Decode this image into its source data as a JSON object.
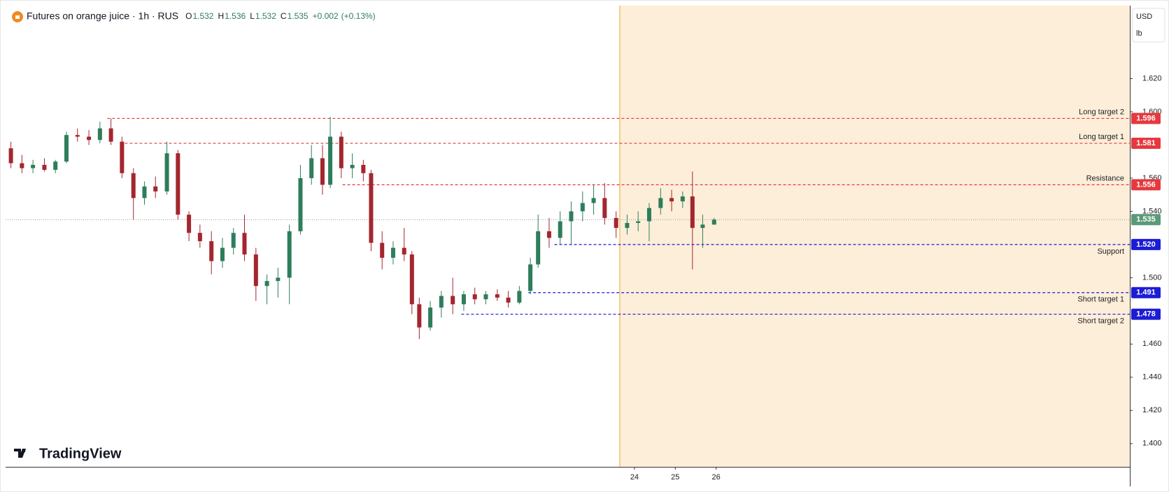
{
  "header": {
    "symbol": "Futures on orange juice · 1h · RUS",
    "ohlc": [
      {
        "label": "O",
        "value": 1.532
      },
      {
        "label": "H",
        "value": 1.536
      },
      {
        "label": "L",
        "value": 1.532
      },
      {
        "label": "C",
        "value": 1.535
      }
    ],
    "change": "+0.002",
    "change_pct": "(+0.13%)"
  },
  "currency": "USD",
  "unit": "lb",
  "watermark": "TradingView",
  "chart_data": {
    "type": "candlestick",
    "x": [
      8.73,
      9.0,
      9.27,
      9.55,
      9.82,
      10.09,
      10.36,
      10.64,
      10.91,
      11.18,
      11.45,
      11.73,
      12.0,
      12.27,
      12.55,
      12.82,
      13.09,
      13.36,
      13.64,
      13.91,
      14.18,
      14.45,
      14.73,
      15.0,
      15.27,
      15.55,
      15.82,
      16.09,
      16.36,
      16.55,
      16.82,
      17.09,
      17.36,
      17.55,
      17.82,
      18.09,
      18.36,
      18.55,
      18.73,
      19.0,
      19.27,
      19.55,
      19.82,
      20.09,
      20.36,
      20.64,
      20.91,
      21.18,
      21.45,
      21.64,
      21.91,
      22.18,
      22.45,
      22.73,
      23.0,
      23.27,
      23.55,
      23.82,
      24.09,
      24.36,
      24.64,
      24.91,
      25.18,
      25.42,
      25.67,
      25.95
    ],
    "open": [
      1.578,
      1.569,
      1.566,
      1.568,
      1.565,
      1.57,
      1.586,
      1.585,
      1.583,
      1.59,
      1.582,
      1.563,
      1.548,
      1.555,
      1.552,
      1.575,
      1.538,
      1.527,
      1.522,
      1.51,
      1.518,
      1.527,
      1.514,
      1.495,
      1.498,
      1.5,
      1.528,
      1.56,
      1.572,
      1.556,
      1.585,
      1.566,
      1.568,
      1.563,
      1.521,
      1.512,
      1.518,
      1.514,
      1.484,
      1.47,
      1.482,
      1.489,
      1.484,
      1.49,
      1.487,
      1.49,
      1.488,
      1.485,
      1.492,
      1.508,
      1.528,
      1.524,
      1.534,
      1.54,
      1.545,
      1.548,
      1.536,
      1.53,
      1.533,
      1.534,
      1.542,
      1.548,
      1.546,
      1.549,
      1.53,
      1.532
    ],
    "high": [
      1.582,
      1.574,
      1.571,
      1.572,
      1.571,
      1.588,
      1.59,
      1.589,
      1.594,
      1.596,
      1.585,
      1.566,
      1.558,
      1.561,
      1.582,
      1.577,
      1.54,
      1.532,
      1.528,
      1.524,
      1.53,
      1.538,
      1.518,
      1.502,
      1.506,
      1.532,
      1.568,
      1.58,
      1.58,
      1.597,
      1.588,
      1.575,
      1.571,
      1.565,
      1.528,
      1.522,
      1.53,
      1.516,
      1.488,
      1.486,
      1.492,
      1.5,
      1.492,
      1.494,
      1.492,
      1.493,
      1.492,
      1.495,
      1.512,
      1.538,
      1.536,
      1.54,
      1.546,
      1.552,
      1.556,
      1.557,
      1.54,
      1.538,
      1.54,
      1.545,
      1.554,
      1.553,
      1.552,
      1.564,
      1.538,
      1.536
    ],
    "low": [
      1.566,
      1.563,
      1.563,
      1.564,
      1.563,
      1.569,
      1.582,
      1.58,
      1.581,
      1.58,
      1.56,
      1.535,
      1.544,
      1.548,
      1.55,
      1.535,
      1.522,
      1.518,
      1.502,
      1.506,
      1.514,
      1.51,
      1.486,
      1.484,
      1.488,
      1.484,
      1.526,
      1.556,
      1.55,
      1.554,
      1.56,
      1.56,
      1.558,
      1.516,
      1.505,
      1.508,
      1.51,
      1.478,
      1.463,
      1.468,
      1.476,
      1.478,
      1.48,
      1.484,
      1.484,
      1.486,
      1.482,
      1.484,
      1.49,
      1.506,
      1.518,
      1.52,
      1.52,
      1.534,
      1.538,
      1.532,
      1.524,
      1.526,
      1.528,
      1.522,
      1.538,
      1.54,
      1.542,
      1.505,
      1.518,
      1.532
    ],
    "close": [
      1.569,
      1.566,
      1.568,
      1.565,
      1.57,
      1.586,
      1.585,
      1.583,
      1.59,
      1.582,
      1.563,
      1.548,
      1.555,
      1.552,
      1.575,
      1.538,
      1.527,
      1.522,
      1.51,
      1.518,
      1.527,
      1.514,
      1.495,
      1.498,
      1.5,
      1.528,
      1.56,
      1.572,
      1.556,
      1.585,
      1.566,
      1.568,
      1.563,
      1.521,
      1.512,
      1.518,
      1.514,
      1.484,
      1.47,
      1.482,
      1.489,
      1.484,
      1.49,
      1.487,
      1.49,
      1.488,
      1.485,
      1.492,
      1.508,
      1.528,
      1.524,
      1.534,
      1.54,
      1.545,
      1.548,
      1.536,
      1.53,
      1.533,
      1.534,
      1.542,
      1.548,
      1.546,
      1.549,
      1.53,
      1.532,
      1.535
    ],
    "up_color": "#2e7d5b",
    "down_color": "#a3262e",
    "xlim": [
      8.6,
      36.13
    ],
    "xticks": [
      24,
      25,
      26
    ],
    "ylim": [
      1.386,
      1.664
    ],
    "yticks": [
      {
        "value": 1.62,
        "label": "1.620"
      },
      {
        "value": 1.6,
        "label": "1.600"
      },
      {
        "value": 1.56,
        "label": "1.560"
      },
      {
        "value": 1.54,
        "label": "1.540"
      },
      {
        "value": 1.5,
        "label": "1.500"
      },
      {
        "value": 1.46,
        "label": "1.460"
      },
      {
        "value": 1.44,
        "label": "1.440"
      },
      {
        "value": 1.42,
        "label": "1.420"
      },
      {
        "value": 1.4,
        "label": "1.400"
      }
    ],
    "last_price": 1.535,
    "last_price_color": "#5b9a78",
    "highlight_start": 23.64,
    "highlight_color": "#fdeed9",
    "highlight_line_color": "#f2b34a",
    "levels": [
      {
        "name": "Long target 2",
        "value": 1.596,
        "color": "#e5393f",
        "label_position": "above",
        "start": 11.09
      },
      {
        "name": "Long target 1",
        "value": 1.581,
        "color": "#e5393f",
        "label_position": "above",
        "start": 11.4
      },
      {
        "name": "Resistance",
        "value": 1.556,
        "color": "#e5393f",
        "label_position": "above",
        "start": 16.85
      },
      {
        "name": "Support",
        "value": 1.52,
        "value_label": "1.520",
        "color": "#1c1cd6",
        "label_position": "below",
        "start": 22.04
      },
      {
        "name": "Short target 1",
        "value": 1.491,
        "color": "#1c1cd6",
        "label_position": "below",
        "start": 21.4
      },
      {
        "name": "Short target 2",
        "value": 1.478,
        "color": "#1c1cd6",
        "label_position": "below",
        "start": 19.76
      }
    ]
  }
}
